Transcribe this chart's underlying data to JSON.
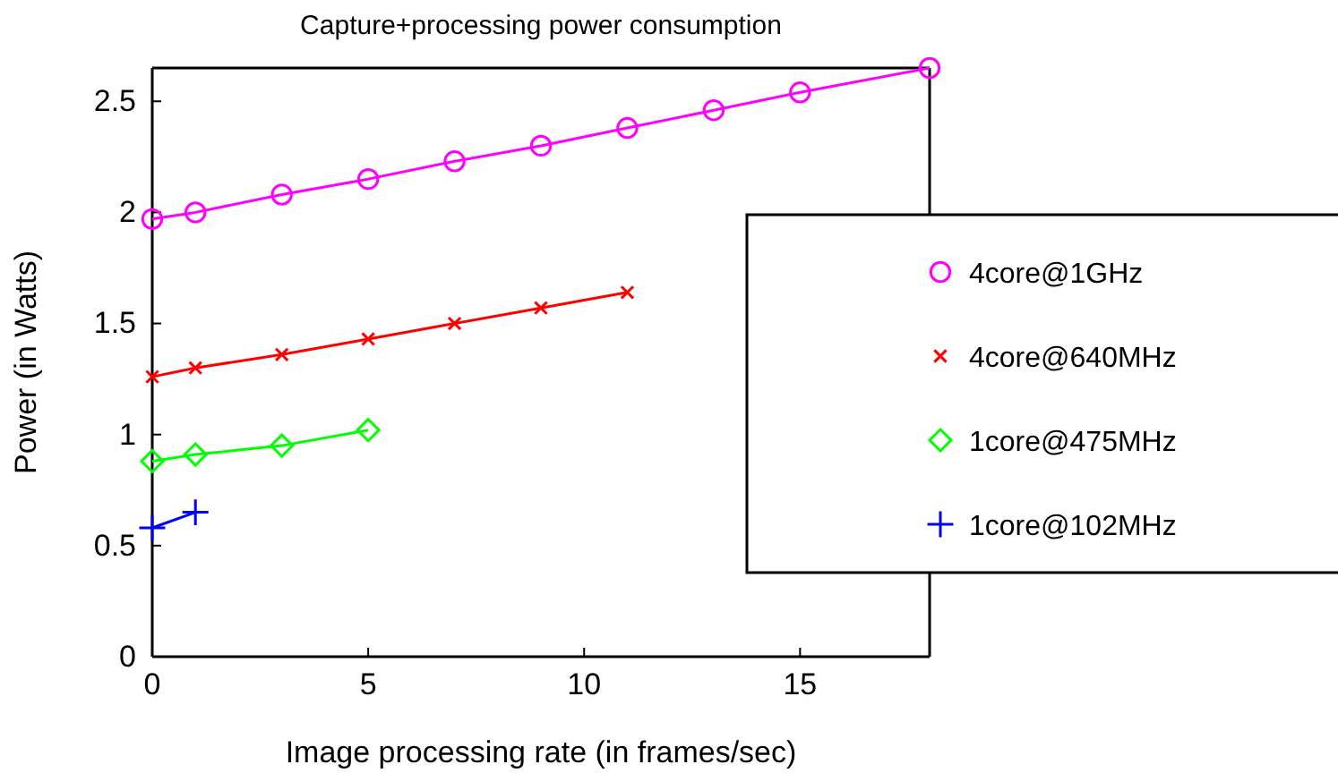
{
  "chart_data": {
    "type": "line",
    "title": "Capture+processing power consumption",
    "xlabel": "Image processing rate (in frames/sec)",
    "ylabel": "Power (in Watts)",
    "xlim": [
      0,
      18
    ],
    "xticks": [
      0,
      5,
      10,
      15
    ],
    "ylim": [
      0,
      2.65
    ],
    "yticks": [
      0,
      0.5,
      1,
      1.5,
      2,
      2.5
    ],
    "grid": false,
    "legend": "right",
    "series": [
      {
        "name": "4core@1GHz",
        "color": "#ff00ff",
        "marker": "circle",
        "x": [
          0,
          1,
          3,
          5,
          7,
          9,
          11,
          13,
          15,
          18
        ],
        "values": [
          1.97,
          2.0,
          2.08,
          2.15,
          2.23,
          2.3,
          2.38,
          2.46,
          2.54,
          2.65
        ]
      },
      {
        "name": "4core@640MHz",
        "color": "#ff0000",
        "marker": "cross",
        "x": [
          0,
          1,
          3,
          5,
          7,
          9,
          11
        ],
        "values": [
          1.26,
          1.3,
          1.36,
          1.43,
          1.5,
          1.57,
          1.64
        ]
      },
      {
        "name": "1core@475MHz",
        "color": "#00ff00",
        "marker": "diamond",
        "x": [
          0,
          1,
          3,
          5
        ],
        "values": [
          0.88,
          0.91,
          0.95,
          1.02
        ]
      },
      {
        "name": "1core@102MHz",
        "color": "#0000ff",
        "marker": "plus",
        "x": [
          0,
          1
        ],
        "values": [
          0.58,
          0.65
        ]
      }
    ]
  }
}
